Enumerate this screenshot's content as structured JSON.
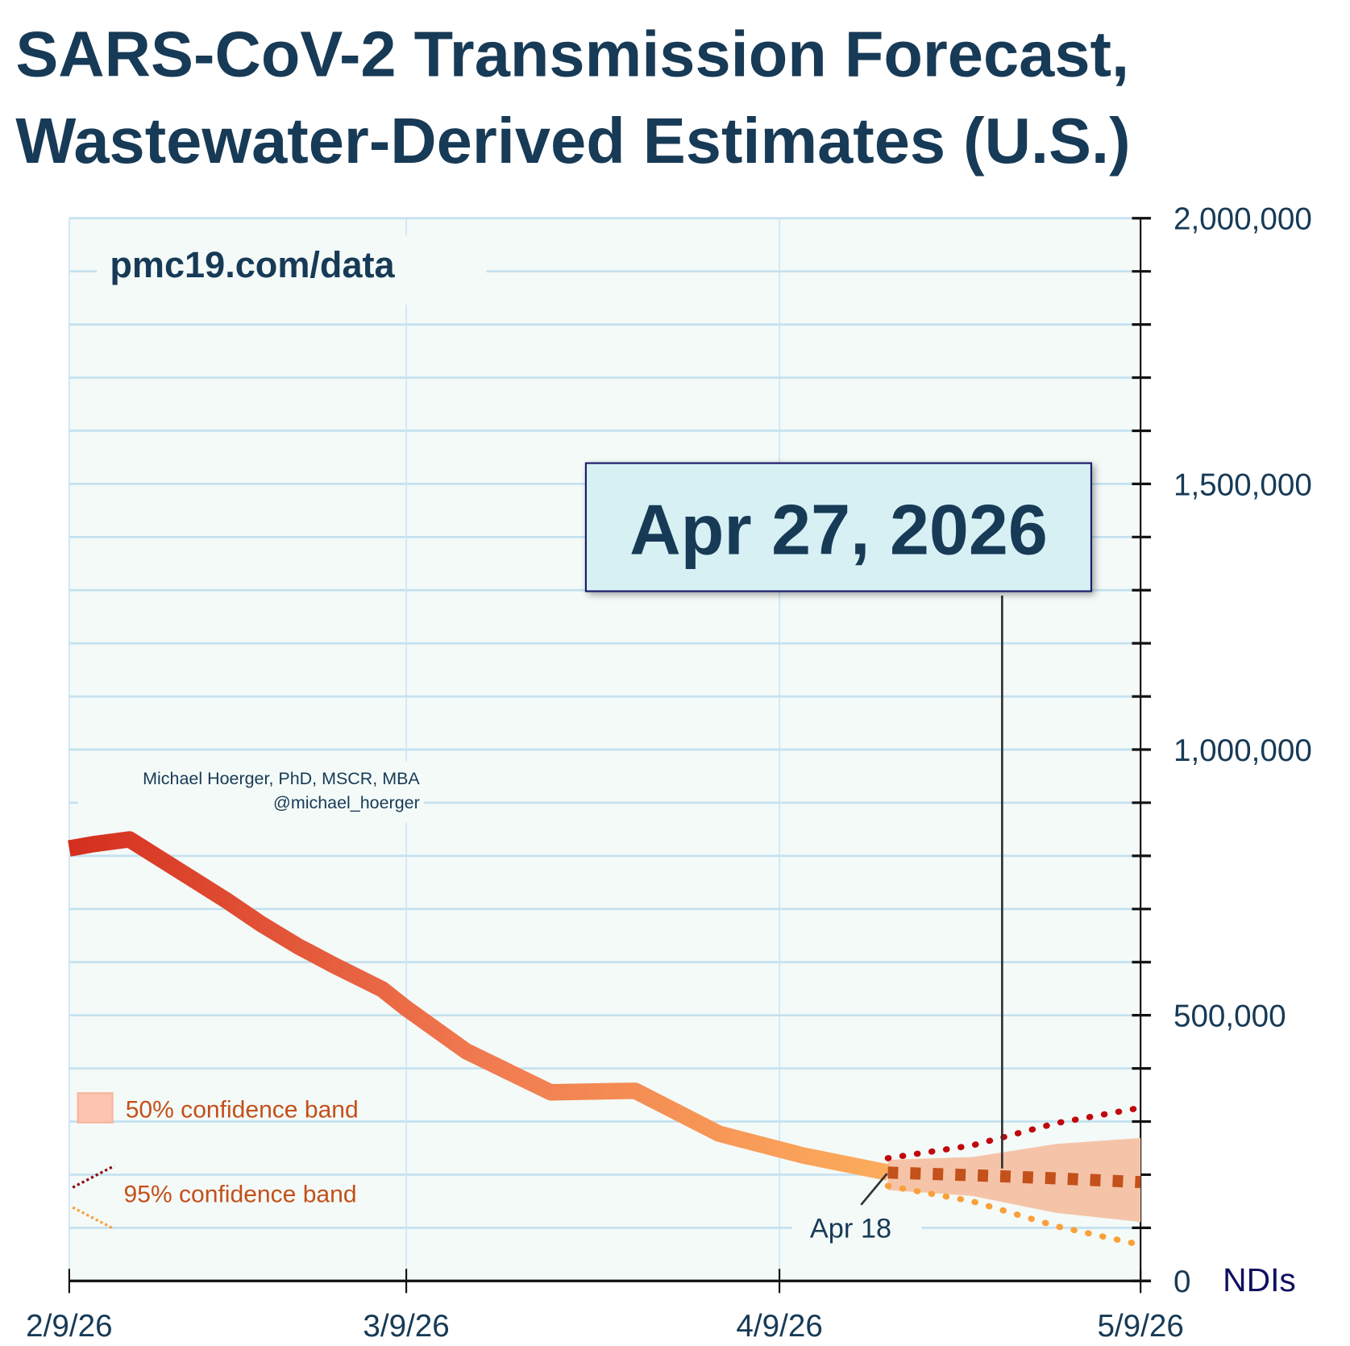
{
  "chart_data": {
    "type": "line",
    "title_line1": "SARS-CoV-2 Transmission Forecast,",
    "title_line2": "Wastewater-Derived Estimates (U.S.)",
    "watermark": "pmc19.com/data",
    "author": "Michael Hoerger, PhD, MSCR, MBA",
    "handle": "@michael_hoerger",
    "ylabel": "NDIs",
    "ylim": [
      0,
      2000000
    ],
    "yticks": [
      0,
      500000,
      1000000,
      1500000,
      2000000
    ],
    "ytick_labels": [
      "0",
      "500,000",
      "1,000,000",
      "1,500,000",
      "2,000,000"
    ],
    "x_start_label": "2/9/26",
    "xlim_days": [
      0,
      89
    ],
    "xticks_days": [
      0,
      28,
      59,
      89
    ],
    "xtick_labels": [
      "2/9/26",
      "3/9/26",
      "4/9/26",
      "5/9/26"
    ],
    "grid": true,
    "callout_date": "Apr 27, 2026",
    "callout_day": 77,
    "forecast_start_label": "Apr 18",
    "forecast_start_day": 68,
    "legend": {
      "band50": "50% confidence band",
      "band95": "95% confidence band",
      "placement": "bottom-left"
    },
    "colors": {
      "title": "#173a56",
      "line_start": "#d42e1e",
      "line_end": "#fcad5c",
      "median": "#c4501a",
      "upper95": "#c0080c",
      "lower95": "#f9a03a",
      "band50": "#f5c4a8",
      "callout_bg": "#d6f0f4"
    },
    "observed": {
      "x_days": [
        0,
        2,
        5,
        9,
        13,
        16,
        19,
        22,
        26,
        28,
        33,
        40,
        47,
        54,
        61,
        68
      ],
      "values": [
        814000,
        822000,
        831000,
        774000,
        717000,
        671000,
        630000,
        594000,
        549000,
        513000,
        432000,
        355000,
        358000,
        277000,
        236000,
        204000
      ]
    },
    "forecast": {
      "x_days": [
        68,
        75,
        82,
        89
      ],
      "median": [
        204000,
        199000,
        193000,
        186000
      ],
      "band50_upper": [
        228000,
        233000,
        258000,
        269000
      ],
      "band50_lower": [
        171000,
        160000,
        128000,
        111000
      ],
      "band95_upper": [
        231000,
        255000,
        297000,
        326000
      ],
      "band95_lower": [
        179000,
        150000,
        103000,
        68000
      ]
    }
  }
}
